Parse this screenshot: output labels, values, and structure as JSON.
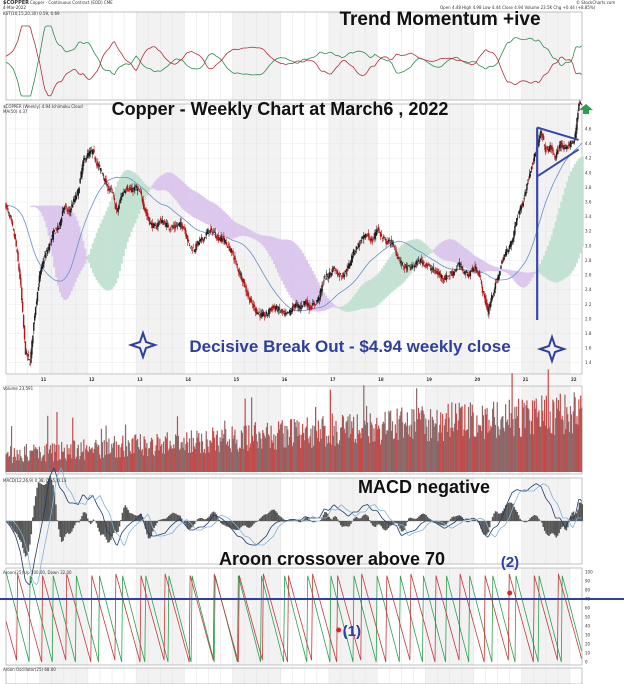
{
  "chart_data": {
    "type": "line",
    "header": {
      "symbol": "$COPPER",
      "name": "Copper - Continuous Contract (EOD) CME",
      "date": "4-Mar-2022",
      "quote": "Open 4.48  High 4.98  Low 4.44  Close 4.94  Volume 23.5K  Chg +0.44 (+8.85%)",
      "source": "© StockCharts.com"
    },
    "annotations": {
      "momentum": "Trend Momentum +ive",
      "title": "Copper - Weekly Chart at March6 , 2022",
      "breakout": "Decisive Break Out - $4.94 weekly close",
      "macd": "MACD negative",
      "aroon": "Aroon crossover above 70",
      "marker1": "(1)",
      "marker2": "(2)"
    },
    "panel_labels": {
      "momentum": "KST(10,15,20,30) 0.59, 0.69",
      "price": "$COPPER (Weekly) 4.94  Ichimoku Cloud",
      "price2": "MA(50) 4.37",
      "volume": "Volume 23,591",
      "macd": "MACD(12,26,9) 0.38, 0.25, 0.13",
      "aroon": "Aroon(25) Up 100.00, Down 32.00",
      "aroon_osc": "Aroon Oscillator(25) 68.00"
    },
    "x_axis": {
      "year_labels": [
        "11",
        "12",
        "13",
        "14",
        "15",
        "16",
        "17",
        "18",
        "19",
        "20",
        "21",
        "22"
      ],
      "year_start": 2010.3,
      "year_end": 2022.25
    },
    "price_axis": {
      "ticks": [
        4.6,
        4.4,
        4.2,
        4.0,
        3.8,
        3.6,
        3.4,
        3.2,
        3.0,
        2.8,
        2.6,
        2.4,
        2.2,
        2.0,
        1.8,
        1.6,
        1.4
      ],
      "ylim": [
        1.3,
        4.75
      ]
    },
    "price_series": {
      "name": "Copper weekly close",
      "x": [
        2010.3,
        2010.4,
        2010.5,
        2010.6,
        2010.7,
        2010.8,
        2010.9,
        2011.0,
        2011.1,
        2011.2,
        2011.3,
        2011.4,
        2011.5,
        2011.6,
        2011.7,
        2011.8,
        2011.9,
        2012.0,
        2012.1,
        2012.2,
        2012.3,
        2012.4,
        2012.5,
        2012.6,
        2012.7,
        2012.8,
        2012.9,
        2013.0,
        2013.1,
        2013.2,
        2013.3,
        2013.4,
        2013.5,
        2013.6,
        2013.7,
        2013.8,
        2013.9,
        2014.0,
        2014.1,
        2014.2,
        2014.3,
        2014.4,
        2014.5,
        2014.6,
        2014.7,
        2014.8,
        2014.9,
        2015.0,
        2015.1,
        2015.2,
        2015.3,
        2015.4,
        2015.5,
        2015.6,
        2015.7,
        2015.8,
        2015.9,
        2016.0,
        2016.1,
        2016.2,
        2016.3,
        2016.4,
        2016.5,
        2016.6,
        2016.7,
        2016.8,
        2016.9,
        2017.0,
        2017.1,
        2017.2,
        2017.3,
        2017.4,
        2017.5,
        2017.6,
        2017.7,
        2017.8,
        2017.9,
        2018.0,
        2018.1,
        2018.2,
        2018.3,
        2018.4,
        2018.5,
        2018.6,
        2018.7,
        2018.8,
        2018.9,
        2019.0,
        2019.1,
        2019.2,
        2019.3,
        2019.4,
        2019.5,
        2019.6,
        2019.7,
        2019.8,
        2019.9,
        2020.0,
        2020.1,
        2020.2,
        2020.3,
        2020.4,
        2020.5,
        2020.6,
        2020.7,
        2020.8,
        2020.9,
        2021.0,
        2021.1,
        2021.2,
        2021.3,
        2021.4,
        2021.5,
        2021.6,
        2021.7,
        2021.8,
        2021.9,
        2022.0,
        2022.1,
        2022.18
      ],
      "y": [
        3.55,
        3.35,
        3.05,
        2.5,
        1.55,
        1.4,
        2.1,
        2.6,
        2.85,
        3.0,
        3.2,
        3.25,
        3.55,
        3.45,
        3.6,
        3.75,
        4.15,
        4.25,
        4.3,
        4.1,
        4.0,
        3.8,
        3.75,
        3.45,
        3.7,
        3.8,
        3.75,
        3.8,
        3.7,
        3.45,
        3.3,
        3.25,
        3.35,
        3.3,
        3.25,
        3.25,
        3.3,
        3.25,
        3.0,
        2.95,
        3.05,
        3.1,
        3.2,
        3.2,
        3.1,
        3.1,
        3.0,
        2.9,
        2.7,
        2.55,
        2.35,
        2.2,
        2.1,
        2.05,
        2.05,
        2.15,
        2.15,
        2.1,
        2.05,
        2.1,
        2.2,
        2.15,
        2.25,
        2.15,
        2.2,
        2.3,
        2.55,
        2.6,
        2.7,
        2.6,
        2.6,
        2.7,
        2.9,
        3.0,
        3.1,
        3.15,
        3.05,
        3.25,
        3.1,
        3.05,
        3.05,
        2.9,
        2.75,
        2.7,
        2.7,
        2.75,
        2.8,
        2.75,
        2.7,
        2.65,
        2.6,
        2.55,
        2.6,
        2.65,
        2.75,
        2.65,
        2.6,
        2.7,
        2.65,
        2.35,
        2.1,
        2.35,
        2.55,
        2.8,
        2.95,
        3.05,
        3.4,
        3.55,
        3.8,
        4.1,
        4.3,
        4.55,
        4.3,
        4.35,
        4.2,
        4.4,
        4.3,
        4.4,
        4.45,
        4.94
      ]
    },
    "breakout": {
      "x": 2022.18,
      "value": 4.94
    },
    "trigger_events": [
      {
        "label": "(1)",
        "x": 2017.2
      },
      {
        "label": "(2)",
        "x": 2020.75
      }
    ],
    "aroon": {
      "ylim": [
        0,
        100
      ],
      "threshold": 70
    }
  }
}
